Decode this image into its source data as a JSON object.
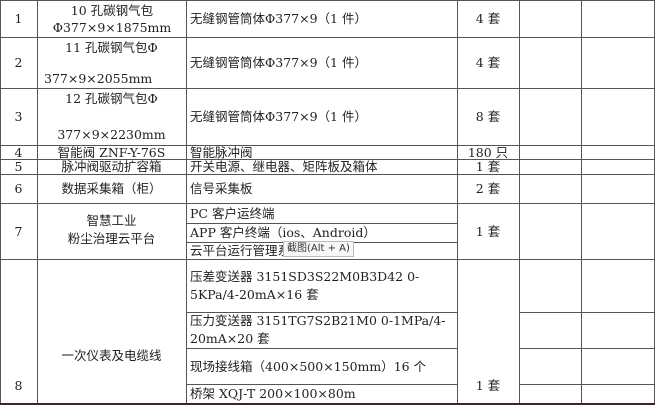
{
  "rows": [
    {
      "no": "1",
      "name": "10 孔碳钢气包 Φ377×9×1875mm",
      "content": "无缝钢管筒体Φ377×9（1 件）",
      "qty": "4 套"
    },
    {
      "no": "2",
      "name_line1": "11 孔碳钢气包Φ",
      "name_line2": "377×9×2055mm",
      "content": "无缝钢管筒体Φ377×9（1 件）",
      "qty": "4 套"
    },
    {
      "no": "3",
      "name_line1": "12 孔碳钢气包Φ",
      "name_line2": "377×9×2230mm",
      "content": "无缝钢管筒体Φ377×9（1 件）",
      "qty": "8 套"
    },
    {
      "no": "4",
      "name": "智能阀 ZNF-Y-76S",
      "content": "智能脉冲阀",
      "qty": "180 只"
    },
    {
      "no": "5",
      "name": "脉冲阀驱动扩容箱",
      "content": "开关电源、继电器、矩阵板及箱体",
      "qty": "1 套"
    },
    {
      "no": "6",
      "name": "数据采集箱（柜）",
      "content": "信号采集板",
      "qty": "2 套"
    },
    {
      "no": "7",
      "name_line1": "智慧工业",
      "name_line2": "粉尘治理云平台",
      "content": [
        "PC 客户运终端",
        "APP 客户终端（ios、Android）",
        "云平台运行管理系"
      ],
      "qty": "1 套"
    },
    {
      "no": "8",
      "name": "一次仪表及电缆线",
      "content": [
        "压差变送器 3151SD3S22M0B3D42 0-5KPa/4-20mA×16 套",
        "压力变送器 3151TG7S2B21M0 0-1MPa/4-20mA×20 套",
        "现场接线箱（400×500×150mm）16 个",
        "桥架 XQJ-T 200×100×80m"
      ],
      "qty": "1 套"
    }
  ],
  "tooltip": "截图(Alt + A)"
}
